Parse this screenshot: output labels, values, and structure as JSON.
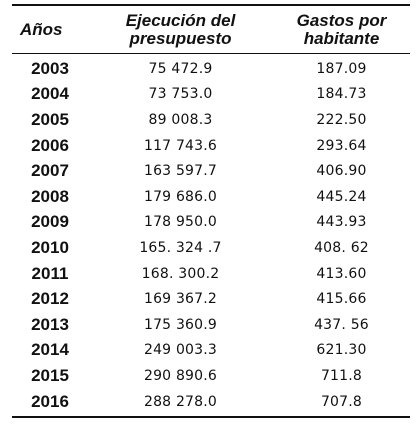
{
  "table": {
    "headers": {
      "year": "Años",
      "budget": "Ejecución del\npresupuesto",
      "per_capita": "Gastos por\nhabitante"
    },
    "rows": [
      {
        "year": "2003",
        "budget": "75 472.9",
        "per_capita": "187.09"
      },
      {
        "year": "2004",
        "budget": "73 753.0",
        "per_capita": "184.73"
      },
      {
        "year": "2005",
        "budget": "89 008.3",
        "per_capita": "222.50"
      },
      {
        "year": "2006",
        "budget": "117 743.6",
        "per_capita": "293.64"
      },
      {
        "year": "2007",
        "budget": "163 597.7",
        "per_capita": "406.90"
      },
      {
        "year": "2008",
        "budget": "179 686.0",
        "per_capita": "445.24"
      },
      {
        "year": "2009",
        "budget": "178 950.0",
        "per_capita": "443.93"
      },
      {
        "year": "2010",
        "budget": "165. 324 .7",
        "per_capita": "408. 62"
      },
      {
        "year": "2011",
        "budget": "168. 300.2",
        "per_capita": "413.60"
      },
      {
        "year": "2012",
        "budget": "169 367.2",
        "per_capita": "415.66"
      },
      {
        "year": "2013",
        "budget": "175 360.9",
        "per_capita": "437. 56"
      },
      {
        "year": "2014",
        "budget": "249 003.3",
        "per_capita": "621.30"
      },
      {
        "year": "2015",
        "budget": "290 890.6",
        "per_capita": "711.8"
      },
      {
        "year": "2016",
        "budget": "288 278.0",
        "per_capita": "707.8"
      }
    ]
  }
}
